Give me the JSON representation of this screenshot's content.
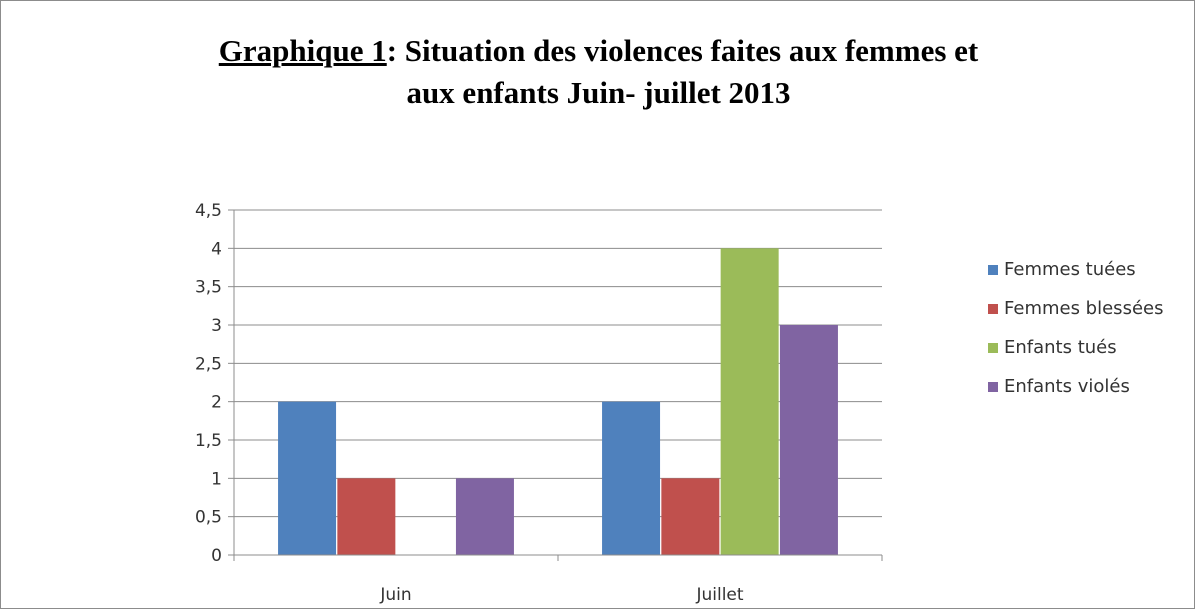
{
  "title": {
    "prefix": "Graphique 1",
    "line1_rest": ": Situation des  violences faites aux femmes et",
    "line2": "aux enfants Juin- juillet 2013"
  },
  "chart_data": {
    "type": "bar",
    "categories": [
      "Juin",
      "Juillet"
    ],
    "series": [
      {
        "name": "Femmes tuées",
        "values": [
          2,
          2
        ],
        "color": "#4f81bd"
      },
      {
        "name": "Femmes blessées",
        "values": [
          1,
          1
        ],
        "color": "#c0504d"
      },
      {
        "name": "Enfants tués",
        "values": [
          0,
          4
        ],
        "color": "#9bbb59"
      },
      {
        "name": "Enfants violés",
        "values": [
          1,
          3
        ],
        "color": "#8064a2"
      }
    ],
    "yticks": [
      "0",
      "0,5",
      "1",
      "1,5",
      "2",
      "2,5",
      "3",
      "3,5",
      "4",
      "4,5"
    ],
    "ylim": [
      0,
      4.5
    ],
    "grid": true,
    "legend_position": "right"
  }
}
